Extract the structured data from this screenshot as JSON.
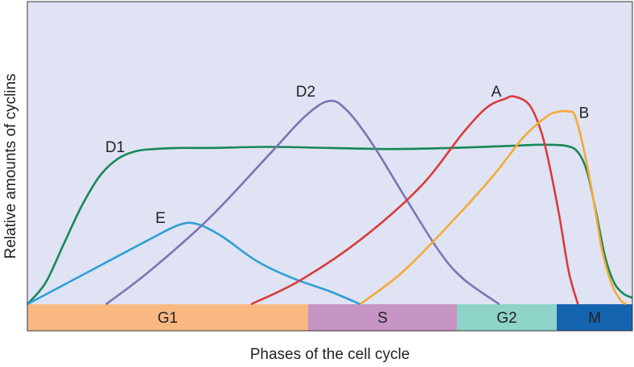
{
  "chart_data": {
    "type": "line",
    "xlabel": "Phases of the cell cycle",
    "ylabel": "Relative amounts of cyclins",
    "xlim": [
      0,
      100
    ],
    "ylim": [
      0,
      100
    ],
    "colors": {
      "plot_background": "#dfe3f3",
      "axis_frame": "#333333"
    },
    "phases": [
      {
        "label": "G1",
        "start": 0,
        "end": 46.4,
        "color": "#f9b882"
      },
      {
        "label": "S",
        "start": 46.4,
        "end": 71,
        "color": "#c795c4"
      },
      {
        "label": "G2",
        "start": 71,
        "end": 87.5,
        "color": "#8dd3c7"
      },
      {
        "label": "M",
        "start": 87.5,
        "end": 100,
        "color": "#1564b0"
      }
    ],
    "series": [
      {
        "name": "D1",
        "color": "#17875a",
        "label_at": [
          14.5,
          71
        ],
        "x": [
          0,
          3,
          6,
          9,
          12,
          15,
          18,
          21,
          25,
          30,
          40,
          50,
          60,
          70,
          80,
          85,
          89,
          91,
          92.5,
          94,
          95.5,
          97,
          98.5,
          100
        ],
        "y": [
          0,
          10,
          28,
          46,
          60,
          68,
          71.5,
          72.5,
          73,
          73,
          73.5,
          73,
          72.5,
          73,
          74,
          74.5,
          74,
          71,
          62,
          43,
          22,
          10,
          5,
          3
        ]
      },
      {
        "name": "E",
        "color": "#2f9fd5",
        "label_at": [
          22,
          38
        ],
        "x": [
          0,
          10,
          20,
          25,
          28,
          32,
          38,
          44,
          50,
          55
        ],
        "y": [
          0,
          15,
          30,
          37,
          37.5,
          32,
          20,
          12,
          6,
          0
        ]
      },
      {
        "name": "D2",
        "color": "#7b75b3",
        "label_at": [
          46,
          97
        ],
        "x": [
          13,
          20,
          30,
          40,
          46,
          50,
          53,
          57,
          62,
          68,
          72,
          78
        ],
        "y": [
          0,
          15,
          40,
          70,
          88,
          95,
          90,
          75,
          52,
          25,
          12,
          0
        ]
      },
      {
        "name": "A",
        "color": "#d93b3b",
        "label_at": [
          77.5,
          97
        ],
        "x": [
          37,
          45,
          55,
          65,
          72,
          76,
          79,
          80.5,
          83,
          85,
          86.5,
          88,
          89.5,
          91
        ],
        "y": [
          0,
          11,
          30,
          55,
          80,
          92,
          96,
          97,
          93,
          80,
          62,
          40,
          15,
          0
        ]
      },
      {
        "name": "B",
        "color": "#f7a936",
        "label_at": [
          92,
          87
        ],
        "x": [
          55,
          62,
          70,
          77,
          82,
          86,
          88,
          89.5,
          90.5,
          92,
          93.5,
          95,
          96.5,
          98,
          99
        ],
        "y": [
          0,
          15,
          38,
          60,
          78,
          88,
          90,
          90,
          88,
          72,
          50,
          25,
          10,
          2,
          0
        ]
      }
    ]
  }
}
